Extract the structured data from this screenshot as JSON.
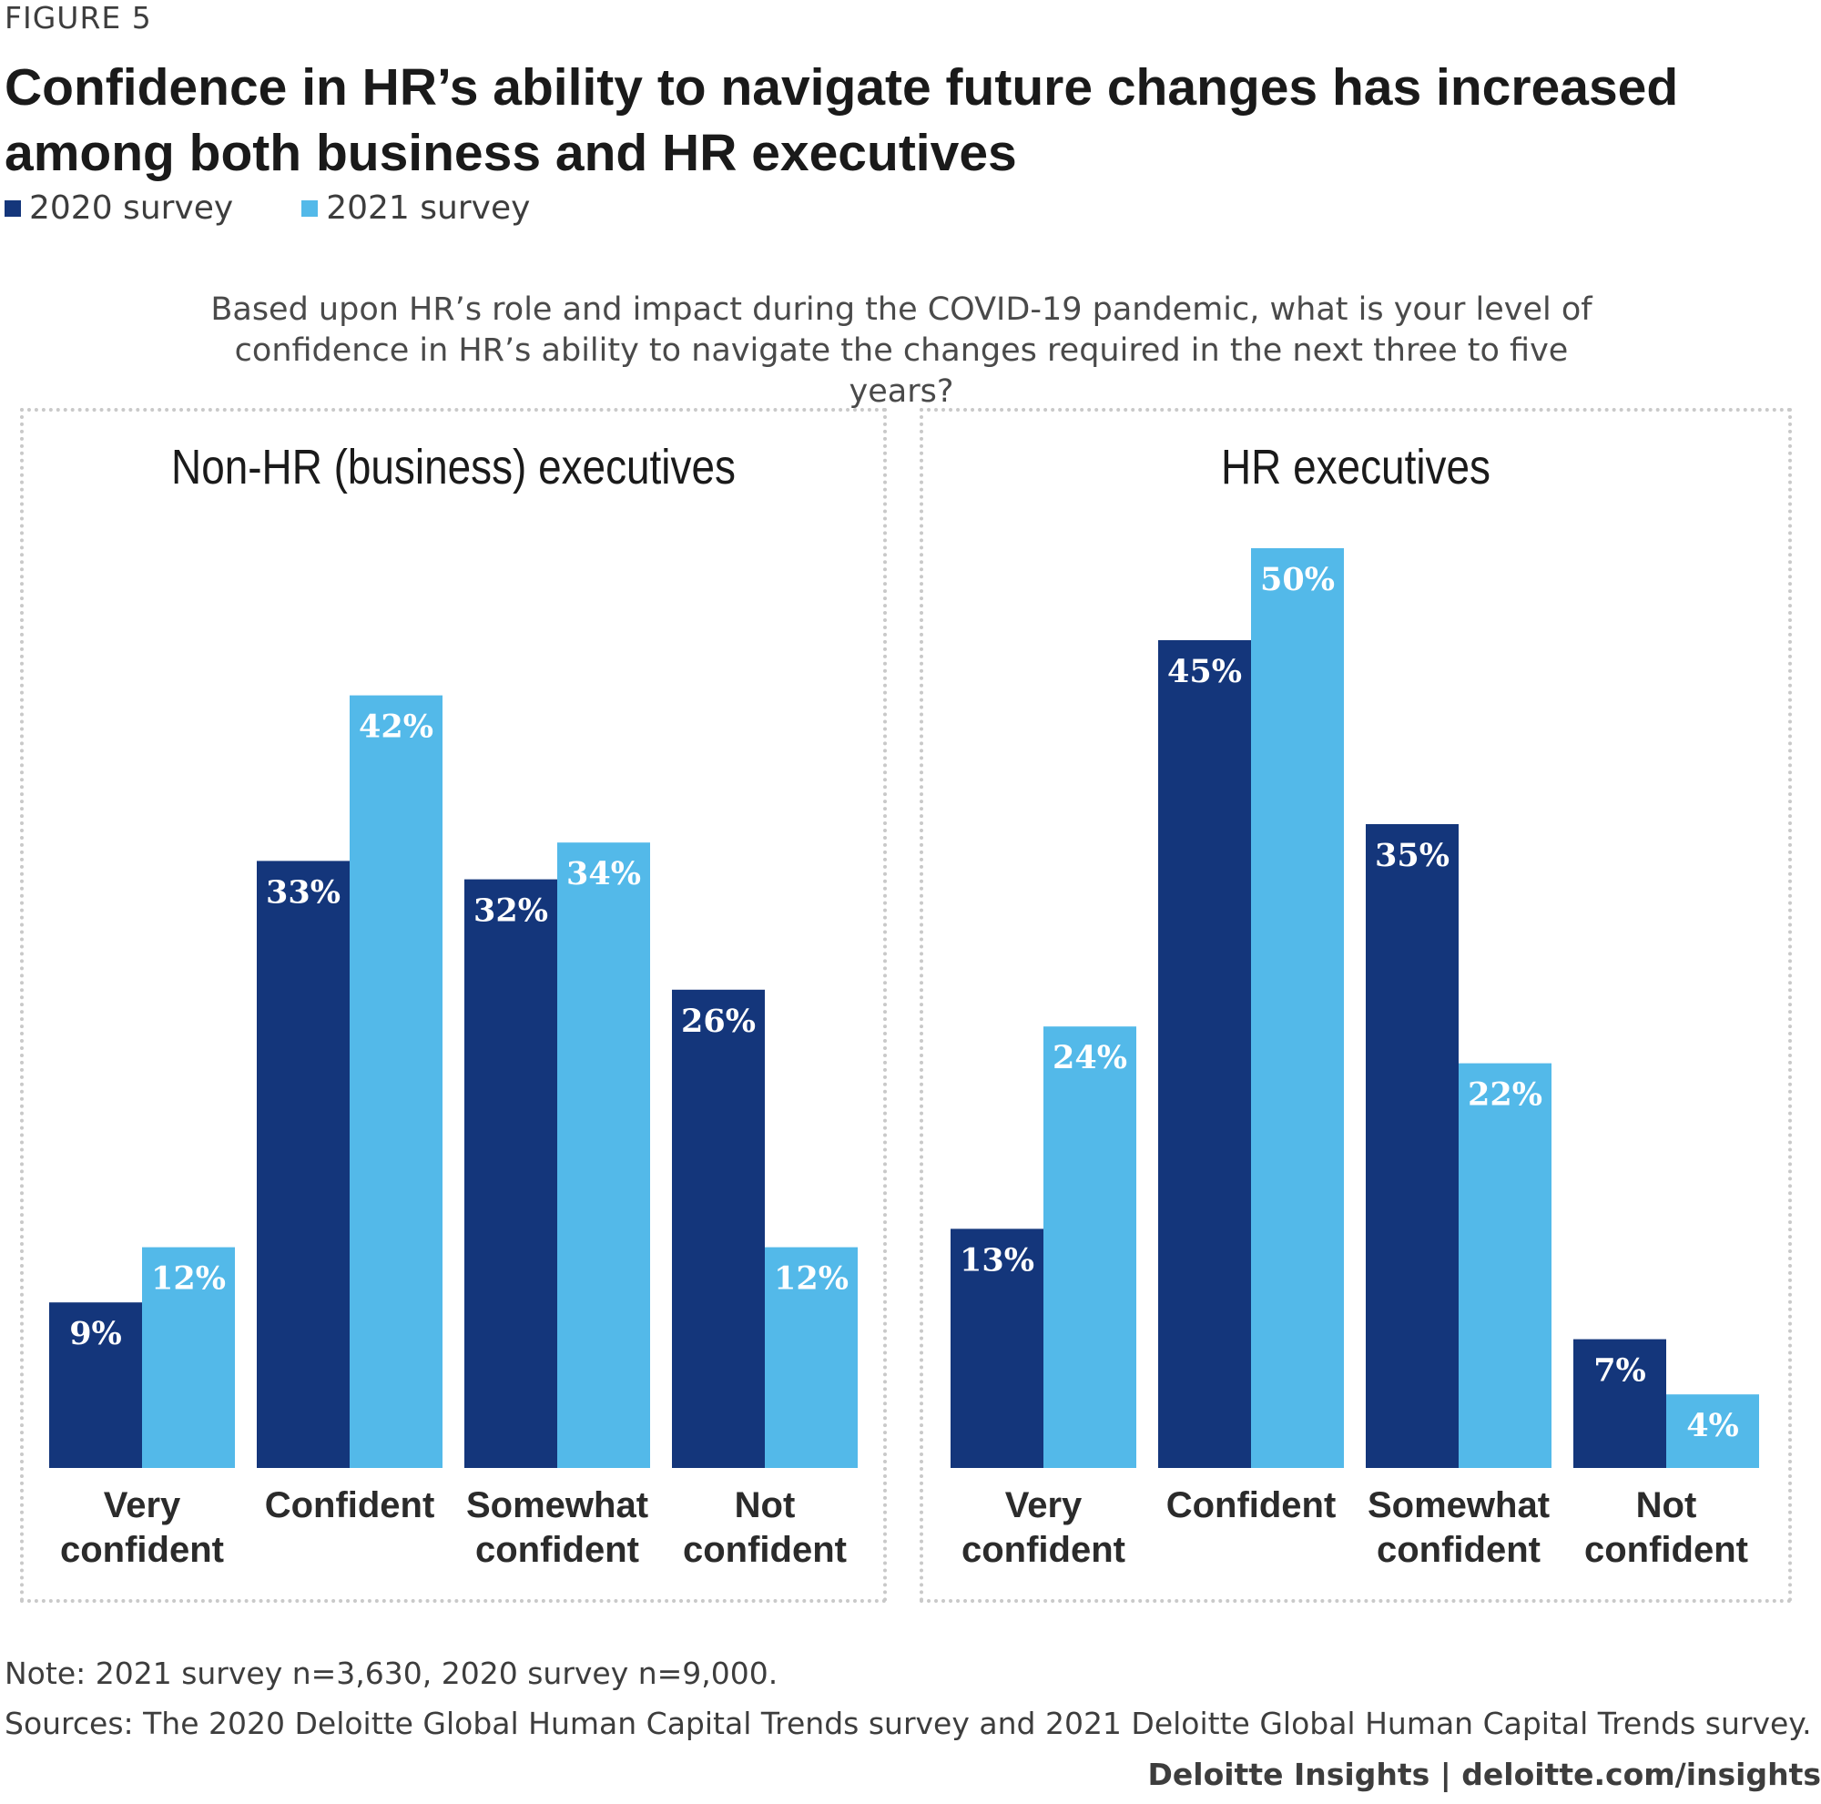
{
  "figure_label": "FIGURE 5",
  "title": "Confidence in HR’s ability to navigate future changes has increased among both business and HR executives",
  "legend": [
    {
      "label": "2020 survey",
      "color": "#14367b"
    },
    {
      "label": "2021 survey",
      "color": "#53b9e9"
    }
  ],
  "question": "Based upon HR’s role and impact during the COVID-19 pandemic, what is your level of confidence in HR’s ability to navigate the changes required in the next three to five years?",
  "note": "Note: 2021 survey n=3,630, 2020 survey n=9,000.",
  "sources": "Sources: The 2020 Deloitte Global Human Capital Trends survey and 2021 Deloitte Global Human Capital Trends survey.",
  "footer": "Deloitte Insights | deloitte.com/insights",
  "chart_data": [
    {
      "type": "bar",
      "title": "Non-HR (business) executives",
      "categories": [
        [
          "Very",
          "confident"
        ],
        [
          "Confident"
        ],
        [
          "Somewhat",
          "confident"
        ],
        [
          "Not",
          "confident"
        ]
      ],
      "series": [
        {
          "name": "2020 survey",
          "values": [
            9,
            33,
            32,
            26
          ],
          "labels": [
            "9%",
            "33%",
            "32%",
            "26%"
          ],
          "color": "#14367b"
        },
        {
          "name": "2021 survey",
          "values": [
            12,
            42,
            34,
            12
          ],
          "labels": [
            "12%",
            "42%",
            "34%",
            "12%"
          ],
          "color": "#53b9e9"
        }
      ],
      "ylim": [
        0,
        50
      ]
    },
    {
      "type": "bar",
      "title": "HR executives",
      "categories": [
        [
          "Very",
          "confident"
        ],
        [
          "Confident"
        ],
        [
          "Somewhat",
          "confident"
        ],
        [
          "Not",
          "confident"
        ]
      ],
      "series": [
        {
          "name": "2020 survey",
          "values": [
            13,
            45,
            35,
            7
          ],
          "labels": [
            "13%",
            "45%",
            "35%",
            "7%"
          ],
          "color": "#14367b"
        },
        {
          "name": "2021 survey",
          "values": [
            24,
            50,
            22,
            4
          ],
          "labels": [
            "24%",
            "50%",
            "22%",
            "4%"
          ],
          "color": "#53b9e9"
        }
      ],
      "ylim": [
        0,
        50
      ]
    }
  ]
}
